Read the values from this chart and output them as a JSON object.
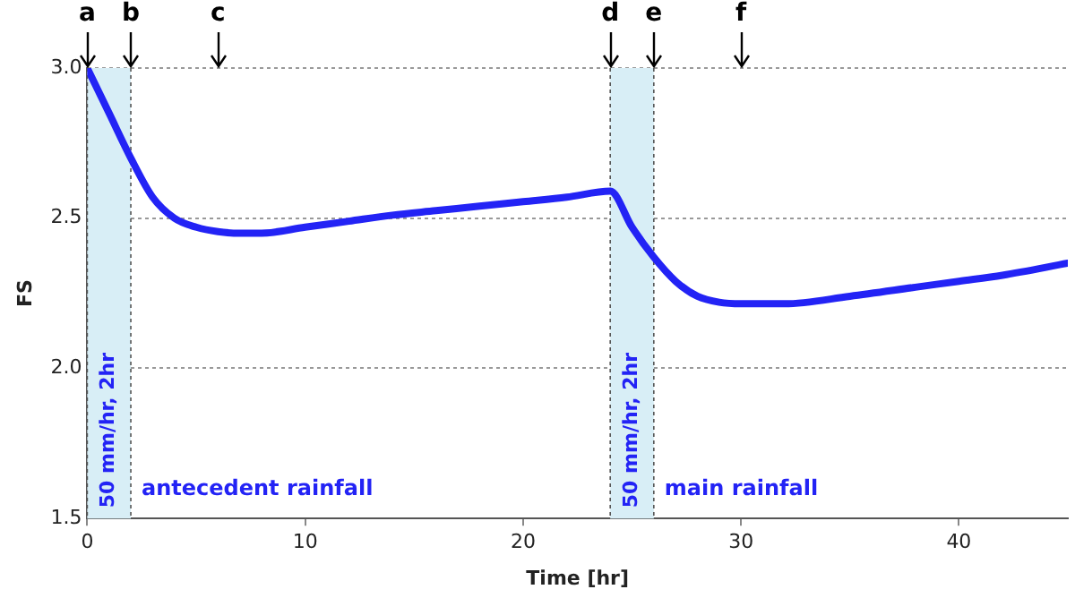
{
  "chart_data": {
    "type": "line",
    "xlabel": "Time [hr]",
    "ylabel": "FS",
    "series": [
      {
        "color": "#2323f5",
        "x": [
          0,
          1,
          2,
          3,
          4,
          5,
          6,
          7,
          8,
          10,
          12,
          14,
          16,
          18,
          20,
          22,
          24,
          25,
          26,
          27,
          28,
          29,
          30,
          32,
          35,
          38,
          40,
          42,
          45
        ],
        "values": [
          3.0,
          2.85,
          2.7,
          2.57,
          2.5,
          2.47,
          2.455,
          2.45,
          2.45,
          2.47,
          2.49,
          2.51,
          2.525,
          2.54,
          2.555,
          2.57,
          2.59,
          2.47,
          2.37,
          2.29,
          2.24,
          2.22,
          2.215,
          2.215,
          2.24,
          2.27,
          2.29,
          2.31,
          2.35
        ]
      }
    ],
    "xlim": [
      0,
      45
    ],
    "xticks": [
      0,
      10,
      20,
      30,
      40
    ],
    "ylim": [
      1.5,
      3.0
    ],
    "yticks": [
      1.5,
      {
        "value": 2,
        "label": "2.0"
      },
      2.5,
      {
        "value": 3,
        "label": "3.0"
      }
    ],
    "grid": "y",
    "legend": false,
    "line_style": "solid",
    "marker": "none",
    "bands": [
      {
        "axis": "x",
        "from": 0,
        "to": 2,
        "label": "50 mm/hr, 2hr",
        "color": "#d8eef6"
      },
      {
        "axis": "x",
        "from": 24,
        "to": 26,
        "label": "50 mm/hr, 2hr",
        "color": "#d8eef6"
      }
    ],
    "annotations": [
      {
        "text": "a",
        "x": 0,
        "y": 3.0
      },
      {
        "text": "b",
        "x": 2,
        "y": 3.0
      },
      "c",
      {
        "text": "d",
        "x": 24,
        "y": 3.0
      },
      {
        "text": "e",
        "x": 26,
        "y": 3.0
      },
      "f",
      "antecedent rainfall",
      "main rainfall"
    ]
  }
}
